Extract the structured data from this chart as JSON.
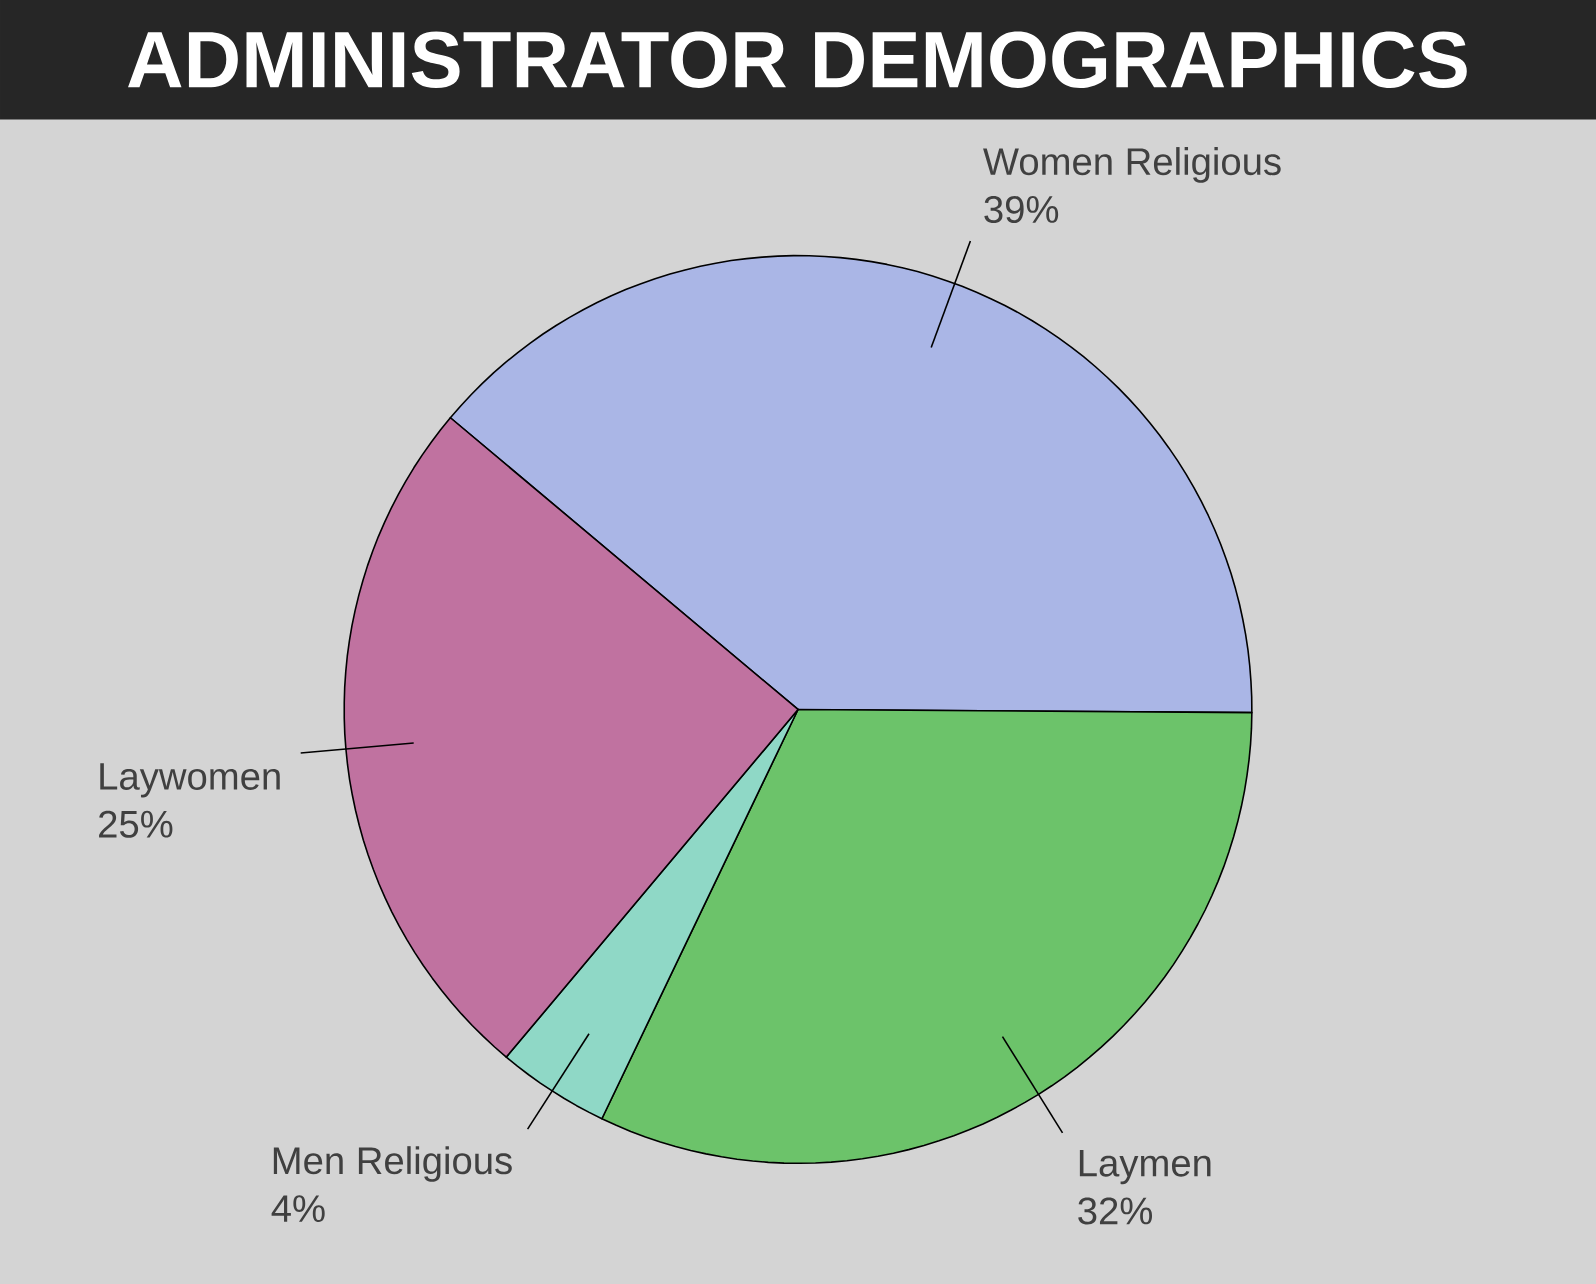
{
  "chart_data": {
    "type": "pie",
    "title": "ADMINISTRATOR DEMOGRAPHICS",
    "categories": [
      "Women Religious",
      "Laymen",
      "Men Religious",
      "Laywomen"
    ],
    "values": [
      39,
      32,
      4,
      25
    ],
    "value_labels": [
      "39%",
      "32%",
      "4%",
      "25%"
    ],
    "colors": [
      "#aab6e6",
      "#6cc36a",
      "#8fd8c6",
      "#c072a0"
    ]
  }
}
